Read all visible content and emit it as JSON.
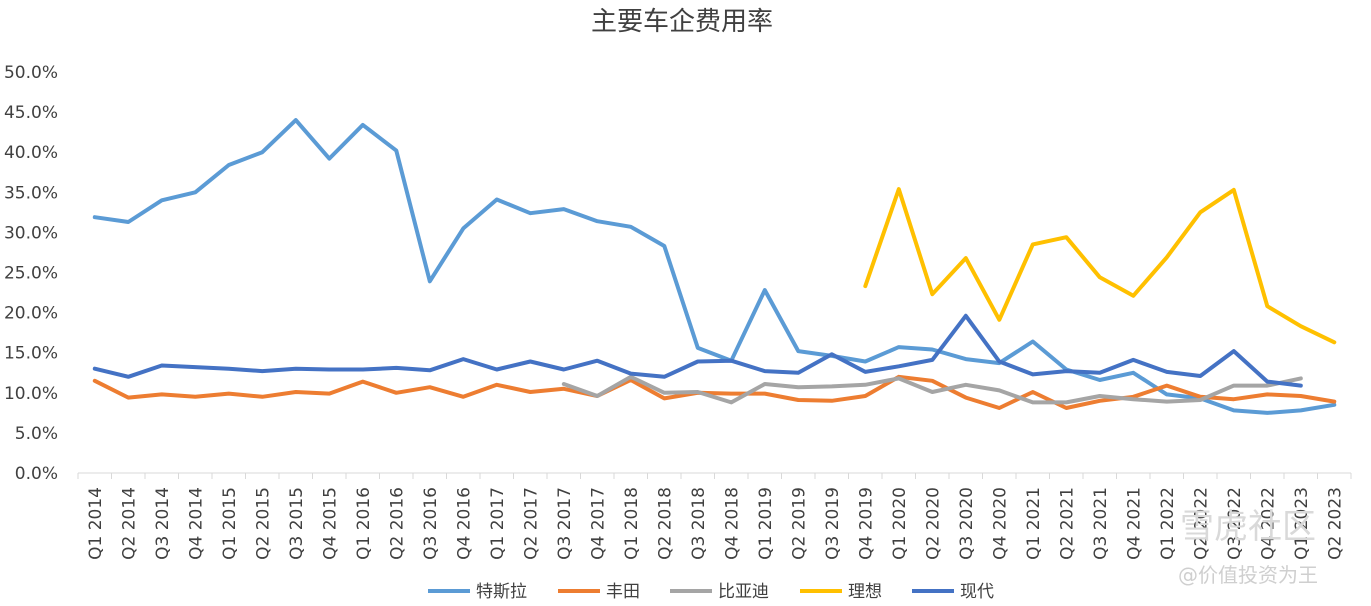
{
  "chart_data": {
    "type": "line",
    "title": "主要车企费用率",
    "xlabel": "",
    "ylabel": "",
    "ylim": [
      0,
      50
    ],
    "yticks": [
      "0.0%",
      "5.0%",
      "10.0%",
      "15.0%",
      "20.0%",
      "25.0%",
      "30.0%",
      "35.0%",
      "40.0%",
      "45.0%",
      "50.0%"
    ],
    "grid": false,
    "legend_position": "bottom",
    "categories": [
      "Q1 2014",
      "Q2 2014",
      "Q3 2014",
      "Q4 2014",
      "Q1 2015",
      "Q2 2015",
      "Q3 2015",
      "Q4 2015",
      "Q1 2016",
      "Q2 2016",
      "Q3 2016",
      "Q4 2016",
      "Q1 2017",
      "Q2 2017",
      "Q3 2017",
      "Q4 2017",
      "Q1 2018",
      "Q2 2018",
      "Q3 2018",
      "Q4 2018",
      "Q1 2019",
      "Q2 2019",
      "Q3 2019",
      "Q4 2019",
      "Q1 2020",
      "Q2 2020",
      "Q3 2020",
      "Q4 2020",
      "Q1 2021",
      "Q2 2021",
      "Q3 2021",
      "Q4 2021",
      "Q1 2022",
      "Q2 2022",
      "Q3 2022",
      "Q4 2022",
      "Q1 2023",
      "Q2 2023"
    ],
    "series": [
      {
        "name": "特斯拉",
        "color": "#5b9bd5",
        "values": [
          31.9,
          31.3,
          34.0,
          35.0,
          38.4,
          40.0,
          44.0,
          39.2,
          43.4,
          40.2,
          23.9,
          30.5,
          34.1,
          32.4,
          32.9,
          31.4,
          30.7,
          28.3,
          15.6,
          14.0,
          22.8,
          15.2,
          14.6,
          13.9,
          15.7,
          15.4,
          14.2,
          13.7,
          16.4,
          12.9,
          11.6,
          12.5,
          9.8,
          9.3,
          7.8,
          7.5,
          7.8,
          8.5
        ]
      },
      {
        "name": "丰田",
        "color": "#ed7d31",
        "values": [
          11.5,
          9.4,
          9.8,
          9.5,
          9.9,
          9.5,
          10.1,
          9.9,
          11.4,
          10.0,
          10.7,
          9.5,
          11.0,
          10.1,
          10.5,
          9.6,
          11.6,
          9.3,
          10.0,
          9.9,
          9.9,
          9.1,
          9.0,
          9.6,
          12.0,
          11.5,
          9.4,
          8.1,
          10.1,
          8.1,
          9.0,
          9.5,
          10.9,
          9.5,
          9.2,
          9.8,
          9.6,
          8.9
        ]
      },
      {
        "name": "比亚迪",
        "color": "#a5a5a5",
        "values": [
          null,
          null,
          null,
          null,
          null,
          null,
          null,
          null,
          null,
          null,
          null,
          null,
          null,
          null,
          11.1,
          9.6,
          12.0,
          10.0,
          10.1,
          8.8,
          11.1,
          10.7,
          10.8,
          11.0,
          11.8,
          10.1,
          11.0,
          10.3,
          8.8,
          8.8,
          9.6,
          9.2,
          8.9,
          9.1,
          10.9,
          10.9,
          11.8,
          null
        ]
      },
      {
        "name": "理想",
        "color": "#ffc000",
        "values": [
          null,
          null,
          null,
          null,
          null,
          null,
          null,
          null,
          null,
          null,
          null,
          null,
          null,
          null,
          null,
          null,
          null,
          null,
          null,
          null,
          null,
          null,
          null,
          23.3,
          35.4,
          22.3,
          26.8,
          19.1,
          28.5,
          29.4,
          24.4,
          22.1,
          26.9,
          32.5,
          35.3,
          20.8,
          18.3,
          16.3
        ]
      },
      {
        "name": "现代",
        "color": "#4472c4",
        "values": [
          13.0,
          12.0,
          13.4,
          13.2,
          13.0,
          12.7,
          13.0,
          12.9,
          12.9,
          13.1,
          12.8,
          14.2,
          12.9,
          13.9,
          12.9,
          14.0,
          12.4,
          12.0,
          13.9,
          14.0,
          12.7,
          12.5,
          14.8,
          12.6,
          13.3,
          14.1,
          19.6,
          13.9,
          12.3,
          12.7,
          12.5,
          14.1,
          12.6,
          12.1,
          15.2,
          11.4,
          10.9,
          null
        ]
      }
    ]
  },
  "watermark": {
    "site": "雪虎社区",
    "author": "@价值投资为王"
  }
}
